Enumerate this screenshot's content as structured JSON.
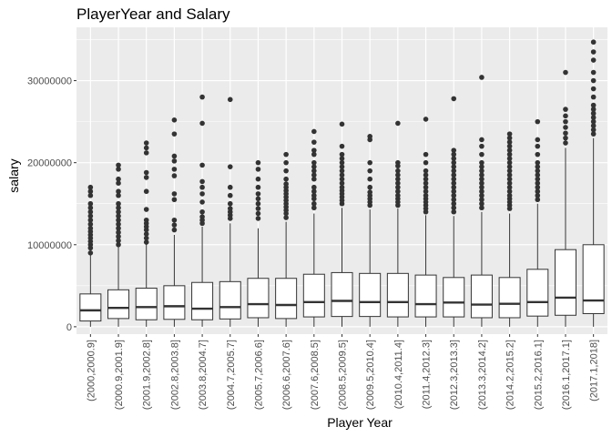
{
  "chart_data": {
    "type": "boxplot",
    "title": "PlayerYear and Salary",
    "xlabel": "Player Year",
    "ylabel": "salary",
    "ylim": [
      -900000,
      36500000
    ],
    "yticks": [
      0,
      10000000,
      20000000,
      30000000
    ],
    "ytick_labels": [
      "0",
      "10000000",
      "20000000",
      "30000000"
    ],
    "grid": true,
    "legend": "none",
    "colors": {
      "panel": "#ebebeb",
      "grid": "#ffffff",
      "box_fill": "#ffffff",
      "box_line": "#333333",
      "outlier": "#333333"
    },
    "categories": [
      "(2000,2000.9]",
      "(2000.9,2001.9]",
      "(2001.9,2002.8]",
      "(2002.8,2003.8]",
      "(2003.8,2004.7]",
      "(2004.7,2005.7]",
      "(2005.7,2006.6]",
      "(2006.6,2007.6]",
      "(2007.6,2008.5]",
      "(2008.5,2009.5]",
      "(2009.5,2010.4]",
      "(2010.4,2011.4]",
      "(2011.4,2012.3]",
      "(2012.3,2013.3]",
      "(2013.3,2014.2]",
      "(2014.2,2015.2]",
      "(2015.2,2016.1]",
      "(2016.1,2017.1]",
      "(2017.1,2018]"
    ],
    "boxes": [
      {
        "min": 0,
        "q1": 700000,
        "median": 2000000,
        "q3": 4000000,
        "max": 8800000,
        "outliers": [
          9000000,
          9600000,
          10000000,
          10400000,
          10800000,
          11200000,
          11600000,
          12000000,
          12500000,
          13000000,
          13500000,
          14000000,
          14500000,
          15000000,
          16000000,
          16500000,
          17000000
        ]
      },
      {
        "min": 0,
        "q1": 1000000,
        "median": 2300000,
        "q3": 4500000,
        "max": 9800000,
        "outliers": [
          10000000,
          10500000,
          11000000,
          11500000,
          12000000,
          12500000,
          13000000,
          13500000,
          14000000,
          14500000,
          15000000,
          16000000,
          16500000,
          17500000,
          18000000,
          19200000,
          19700000
        ]
      },
      {
        "min": 0,
        "q1": 850000,
        "median": 2400000,
        "q3": 4700000,
        "max": 10100000,
        "outliers": [
          10300000,
          10800000,
          11300000,
          11800000,
          12200000,
          12600000,
          13000000,
          14300000,
          16500000,
          18200000,
          18800000,
          21200000,
          21800000,
          22400000
        ]
      },
      {
        "min": 0,
        "q1": 900000,
        "median": 2500000,
        "q3": 5000000,
        "max": 11200000,
        "outliers": [
          11800000,
          12400000,
          13000000,
          15500000,
          16200000,
          18400000,
          19200000,
          20200000,
          20800000,
          23500000,
          25200000
        ]
      },
      {
        "min": 0,
        "q1": 850000,
        "median": 2200000,
        "q3": 5400000,
        "max": 12200000,
        "outliers": [
          12600000,
          13000000,
          13400000,
          14000000,
          15200000,
          16200000,
          17000000,
          17700000,
          19700000,
          24800000,
          28000000
        ]
      },
      {
        "min": 0,
        "q1": 950000,
        "median": 2400000,
        "q3": 5500000,
        "max": 12600000,
        "outliers": [
          13200000,
          13600000,
          14000000,
          14400000,
          15000000,
          16000000,
          17000000,
          19500000,
          27700000
        ]
      },
      {
        "min": 0,
        "q1": 1100000,
        "median": 2750000,
        "q3": 5900000,
        "max": 12000000,
        "outliers": [
          13200000,
          13800000,
          14400000,
          15000000,
          15600000,
          16200000,
          17000000,
          18000000,
          19200000,
          20000000
        ]
      },
      {
        "min": 0,
        "q1": 1000000,
        "median": 2650000,
        "q3": 5900000,
        "max": 12800000,
        "outliers": [
          13300000,
          13800000,
          14200000,
          14600000,
          15000000,
          15400000,
          15800000,
          16200000,
          16600000,
          17000000,
          17400000,
          18000000,
          19000000,
          20000000,
          21000000
        ]
      },
      {
        "min": 0,
        "q1": 1200000,
        "median": 3000000,
        "q3": 6400000,
        "max": 13800000,
        "outliers": [
          14500000,
          15000000,
          15600000,
          16000000,
          16500000,
          17000000,
          18000000,
          18500000,
          19000000,
          19500000,
          20000000,
          21000000,
          21500000,
          22500000,
          23800000
        ]
      },
      {
        "min": 0,
        "q1": 1250000,
        "median": 3150000,
        "q3": 6600000,
        "max": 14500000,
        "outliers": [
          15000000,
          15400000,
          15800000,
          16200000,
          16600000,
          17000000,
          17500000,
          18000000,
          18500000,
          19000000,
          19500000,
          20000000,
          20500000,
          21000000,
          22000000,
          24700000
        ]
      },
      {
        "min": 0,
        "q1": 1250000,
        "median": 3000000,
        "q3": 6500000,
        "max": 14300000,
        "outliers": [
          14800000,
          15200000,
          15600000,
          16000000,
          16400000,
          17000000,
          18000000,
          19000000,
          20000000,
          22800000,
          23200000
        ]
      },
      {
        "min": 0,
        "q1": 1200000,
        "median": 3000000,
        "q3": 6500000,
        "max": 14400000,
        "outliers": [
          14800000,
          15200000,
          15600000,
          16000000,
          16500000,
          17000000,
          17500000,
          18000000,
          18500000,
          19000000,
          19600000,
          20000000,
          24800000
        ]
      },
      {
        "min": 0,
        "q1": 1200000,
        "median": 2750000,
        "q3": 6300000,
        "max": 13600000,
        "outliers": [
          14000000,
          14400000,
          14800000,
          15200000,
          15600000,
          16000000,
          16500000,
          17000000,
          17500000,
          18000000,
          18500000,
          19000000,
          20000000,
          21000000,
          25300000
        ]
      },
      {
        "min": 0,
        "q1": 1200000,
        "median": 2950000,
        "q3": 6000000,
        "max": 13500000,
        "outliers": [
          14000000,
          14500000,
          15000000,
          15500000,
          16000000,
          16500000,
          17000000,
          17500000,
          18000000,
          18500000,
          19000000,
          19500000,
          20000000,
          20500000,
          21000000,
          21500000,
          27800000
        ]
      },
      {
        "min": 0,
        "q1": 1100000,
        "median": 2700000,
        "q3": 6300000,
        "max": 14000000,
        "outliers": [
          14500000,
          15000000,
          15500000,
          16000000,
          16500000,
          17000000,
          17500000,
          18000000,
          18500000,
          19000000,
          19500000,
          20000000,
          21000000,
          22000000,
          22800000,
          30400000
        ]
      },
      {
        "min": 0,
        "q1": 1100000,
        "median": 2800000,
        "q3": 6000000,
        "max": 13800000,
        "outliers": [
          14400000,
          14800000,
          15200000,
          15600000,
          16000000,
          16500000,
          17000000,
          17500000,
          18000000,
          18500000,
          19000000,
          19500000,
          20000000,
          20500000,
          21000000,
          21500000,
          22000000,
          22500000,
          23000000,
          23500000
        ]
      },
      {
        "min": 0,
        "q1": 1300000,
        "median": 3000000,
        "q3": 7000000,
        "max": 15000000,
        "outliers": [
          15500000,
          16000000,
          16500000,
          17000000,
          17500000,
          18000000,
          18500000,
          19000000,
          19500000,
          20000000,
          21000000,
          22000000,
          22800000,
          25000000
        ]
      },
      {
        "min": 0,
        "q1": 1400000,
        "median": 3550000,
        "q3": 9400000,
        "max": 21800000,
        "outliers": [
          22400000,
          23000000,
          23600000,
          24300000,
          25000000,
          25700000,
          26500000,
          31000000
        ]
      },
      {
        "min": 0,
        "q1": 1600000,
        "median": 3200000,
        "q3": 10000000,
        "max": 23000000,
        "outliers": [
          23500000,
          24000000,
          24500000,
          25000000,
          25500000,
          26000000,
          26500000,
          27000000,
          28000000,
          29000000,
          30000000,
          31000000,
          32500000,
          33500000,
          34700000
        ]
      }
    ]
  }
}
